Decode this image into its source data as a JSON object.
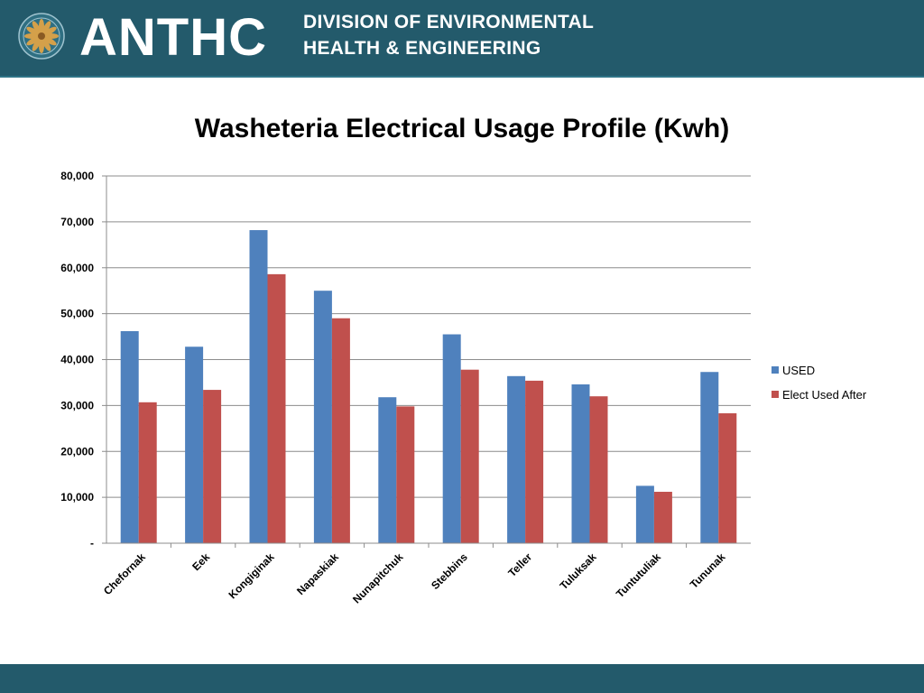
{
  "header": {
    "org_name": "ANTHC",
    "division_line1": "DIVISION OF ENVIRONMENTAL",
    "division_line2": "HEALTH & ENGINEERING",
    "logo_icon": "anthc-seal-icon",
    "background": "#235a6b"
  },
  "chart_data": {
    "type": "bar",
    "title": "Washeteria Electrical Usage Profile (Kwh)",
    "xlabel": "",
    "ylabel": "",
    "categories": [
      "Chefornak",
      "Eek",
      "Kongiginak",
      "Napaskiak",
      "Nunapitchuk",
      "Stebbins",
      "Teller",
      "Tuluksak",
      "Tuntutuliak",
      "Tununak"
    ],
    "series": [
      {
        "name": "USED",
        "color": "#4f81bd",
        "values": [
          46200,
          42800,
          68200,
          55000,
          31800,
          45500,
          36400,
          34600,
          12500,
          37300
        ]
      },
      {
        "name": "Elect Used After",
        "color": "#c0504d",
        "values": [
          30700,
          33400,
          58600,
          49000,
          29800,
          37800,
          35400,
          32000,
          11200,
          28300
        ]
      }
    ],
    "ylim": [
      0,
      80000
    ],
    "yticks": [
      0,
      10000,
      20000,
      30000,
      40000,
      50000,
      60000,
      70000,
      80000
    ],
    "ytick_labels": [
      "-",
      "10,000",
      "20,000",
      "30,000",
      "40,000",
      "50,000",
      "60,000",
      "70,000",
      "80,000"
    ],
    "grid": true,
    "legend_position": "right"
  }
}
